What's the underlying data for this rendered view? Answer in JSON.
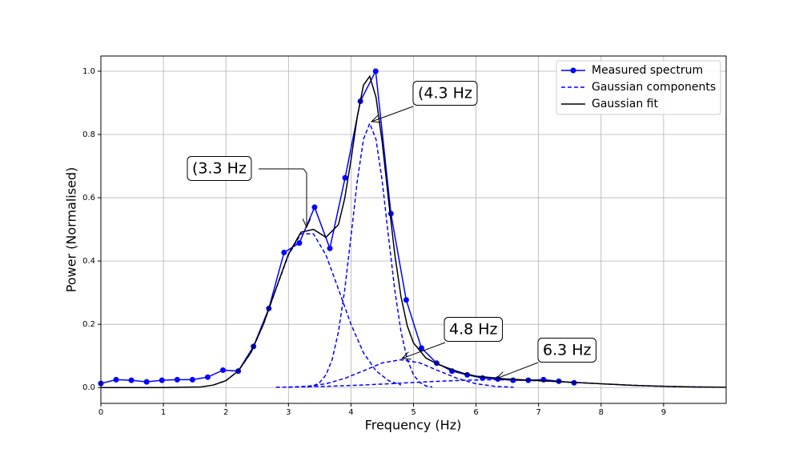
{
  "chart_data": {
    "type": "line",
    "xlabel": "Frequency (Hz)",
    "ylabel": "Power (Normalised)",
    "xlim": [
      0,
      10
    ],
    "ylim": [
      -0.05,
      1.048
    ],
    "xticks": [
      0,
      1,
      2,
      3,
      4,
      5,
      6,
      7,
      8,
      9
    ],
    "yticks": [
      {
        "value": 0,
        "label": "0.0"
      },
      0.2,
      0.4,
      0.6,
      0.8,
      {
        "value": 1,
        "label": "1.0"
      }
    ],
    "grid": true,
    "legend": "upper right",
    "annotations": [
      "(3.3 Hz",
      "(4.3 Hz",
      "4.8 Hz",
      "6.3 Hz"
    ],
    "series": [
      {
        "name": "Measured spectrum",
        "color": "#0000ff",
        "style": "solid-markers",
        "x": [
          0,
          0.244,
          0.488,
          0.732,
          0.977,
          1.221,
          1.465,
          1.709,
          1.953,
          2.197,
          2.441,
          2.686,
          2.93,
          3.174,
          3.418,
          3.662,
          3.906,
          4.15,
          4.395,
          4.639,
          4.883,
          5.127,
          5.371,
          5.615,
          5.859,
          6.104,
          6.348,
          6.592,
          6.836,
          7.08,
          7.324,
          7.568
        ],
        "values": [
          0.013,
          0.025,
          0.023,
          0.018,
          0.023,
          0.025,
          0.025,
          0.033,
          0.055,
          0.052,
          0.13,
          0.25,
          0.427,
          0.457,
          0.57,
          0.44,
          0.663,
          0.905,
          1.0,
          0.55,
          0.277,
          0.125,
          0.077,
          0.052,
          0.04,
          0.03,
          0.027,
          0.023,
          0.023,
          0.025,
          0.02,
          0.015
        ]
      },
      {
        "name": "Gaussian components",
        "color": "#0000ff",
        "style": "dashed",
        "x": [
          1.8,
          2.0,
          2.2,
          2.4,
          2.6,
          2.8,
          3.0,
          3.2,
          3.4,
          3.6,
          3.8,
          4.0,
          4.2,
          4.4,
          4.6,
          4.8
        ],
        "values": [
          0.008,
          0.022,
          0.053,
          0.11,
          0.2,
          0.311,
          0.419,
          0.486,
          0.486,
          0.419,
          0.311,
          0.2,
          0.11,
          0.053,
          0.022,
          0.008
        ]
      },
      {
        "color": "#0000ff",
        "style": "dashed",
        "x": [
          3.3,
          3.4,
          3.5,
          3.6,
          3.7,
          3.8,
          3.9,
          4.0,
          4.1,
          4.2,
          4.3,
          4.4,
          4.5,
          4.6,
          4.7,
          4.8,
          4.9,
          5.0,
          5.1,
          5.2,
          5.3
        ],
        "values": [
          0.002,
          0.005,
          0.016,
          0.04,
          0.089,
          0.177,
          0.309,
          0.477,
          0.652,
          0.785,
          0.835,
          0.785,
          0.652,
          0.477,
          0.309,
          0.177,
          0.089,
          0.04,
          0.016,
          0.005,
          0.002
        ]
      },
      {
        "color": "#0000ff",
        "style": "dashed",
        "x": [
          3.0,
          3.3,
          3.6,
          3.9,
          4.2,
          4.5,
          4.8,
          5.1,
          5.4,
          5.7,
          6.0,
          6.3,
          6.6
        ],
        "values": [
          0.001,
          0.004,
          0.012,
          0.029,
          0.053,
          0.078,
          0.088,
          0.078,
          0.053,
          0.029,
          0.012,
          0.004,
          0.001
        ]
      },
      {
        "color": "#0000ff",
        "style": "dashed",
        "x": [
          2.8,
          3.3,
          3.8,
          4.3,
          4.8,
          5.3,
          5.8,
          6.3,
          6.8,
          7.3,
          7.8,
          8.3,
          8.8,
          9.3,
          9.8
        ],
        "values": [
          0.001,
          0.0025,
          0.005,
          0.009,
          0.014,
          0.019,
          0.023,
          0.025,
          0.023,
          0.019,
          0.014,
          0.009,
          0.005,
          0.0025,
          0.001
        ]
      },
      {
        "name": "Gaussian fit",
        "color": "#000000",
        "style": "solid",
        "x": [
          0,
          1,
          1.6,
          1.8,
          2.0,
          2.2,
          2.4,
          2.6,
          2.8,
          3.0,
          3.2,
          3.4,
          3.6,
          3.8,
          3.9,
          4.0,
          4.1,
          4.2,
          4.3,
          4.4,
          4.5,
          4.6,
          4.7,
          4.8,
          4.9,
          5.0,
          5.2,
          5.4,
          5.6,
          5.8,
          6.0,
          6.5,
          7.0,
          7.5,
          8.0,
          8.5,
          9.0,
          9.5,
          10
        ],
        "values": [
          0,
          0,
          0.002,
          0.008,
          0.022,
          0.053,
          0.111,
          0.201,
          0.312,
          0.422,
          0.491,
          0.5,
          0.475,
          0.515,
          0.598,
          0.719,
          0.855,
          0.956,
          0.984,
          0.918,
          0.775,
          0.594,
          0.422,
          0.287,
          0.195,
          0.141,
          0.093,
          0.073,
          0.058,
          0.045,
          0.036,
          0.027,
          0.022,
          0.017,
          0.012,
          0.007,
          0.004,
          0.002,
          0.001
        ]
      }
    ]
  }
}
